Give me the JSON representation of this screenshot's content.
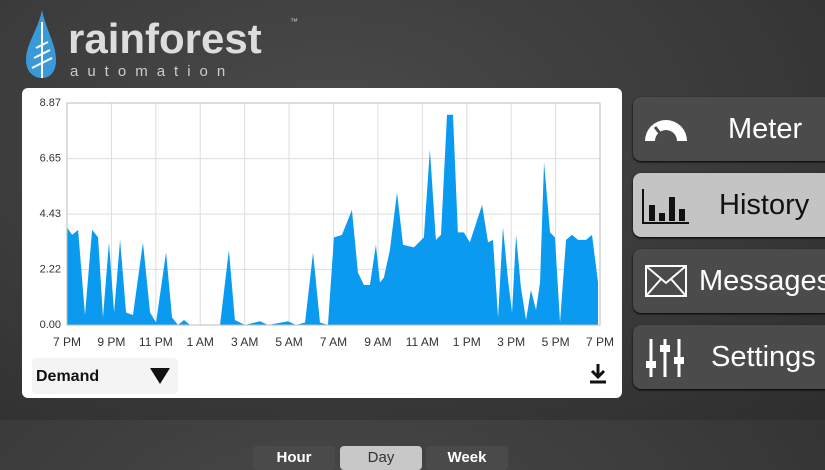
{
  "logo": {
    "name": "rainforest",
    "tm": "™",
    "tagline": "automation"
  },
  "chart_data": {
    "type": "area",
    "color": "#0a9bf0",
    "grid": true,
    "x": [
      0,
      0.23,
      0.5,
      0.81,
      1.13,
      1.4,
      1.62,
      1.89,
      2.12,
      2.39,
      2.66,
      2.97,
      3.42,
      3.74,
      4.01,
      4.46,
      4.73,
      5,
      5.27,
      5.54,
      6.89,
      7.29,
      7.56,
      8.01,
      8.69,
      9.05,
      9.95,
      10.31,
      10.72,
      11.08,
      11.39,
      11.75,
      12.02,
      12.38,
      12.56,
      12.83,
      13.1,
      13.37,
      13.64,
      13.91,
      14.09,
      14.27,
      14.54,
      14.86,
      15.13,
      15.62,
      16.07,
      16.34,
      16.61,
      16.84,
      17.11,
      17.38,
      17.6,
      17.87,
      18.14,
      18.69,
      18.96,
      19.18,
      19.41,
      19.63,
      19.86,
      20.04,
      20.22,
      20.44,
      20.67,
      20.89,
      21.12,
      21.3,
      21.48,
      21.75,
      21.97,
      22.2,
      22.47,
      22.74,
      23.01,
      23.37,
      23.64,
      23.91
    ],
    "values": [
      3.9,
      3.6,
      3.8,
      0.4,
      3.8,
      3.5,
      0.3,
      3.3,
      0.5,
      3.4,
      0.5,
      0.4,
      3.3,
      0.5,
      0.1,
      2.9,
      0.3,
      0,
      0.2,
      0,
      0,
      3,
      0.2,
      0,
      0.15,
      0,
      0.15,
      0,
      0.1,
      2.9,
      0.1,
      0,
      3.5,
      3.6,
      4,
      4.6,
      2.1,
      1.6,
      1.6,
      3.2,
      1.7,
      1.9,
      3,
      5.3,
      3.2,
      3.1,
      3.5,
      7,
      3.4,
      3.6,
      8.4,
      8.4,
      3.7,
      3.7,
      3.3,
      4.8,
      3.3,
      3.4,
      0.3,
      3.9,
      1.8,
      0.5,
      3.6,
      1.5,
      0.2,
      1.4,
      0.6,
      1.7,
      6.5,
      3.7,
      3.5,
      0.1,
      3.4,
      3.6,
      3.4,
      3.4,
      3.6,
      1.7
    ],
    "xlim": [
      0,
      24
    ],
    "xticks": [
      {
        "value": 0,
        "label": "7 PM"
      },
      {
        "value": 2,
        "label": "9 PM"
      },
      {
        "value": 4,
        "label": "11 PM"
      },
      {
        "value": 6,
        "label": "1 AM"
      },
      {
        "value": 8,
        "label": "3 AM"
      },
      {
        "value": 10,
        "label": "5 AM"
      },
      {
        "value": 12,
        "label": "7 AM"
      },
      {
        "value": 14,
        "label": "9 AM"
      },
      {
        "value": 16,
        "label": "11 AM"
      },
      {
        "value": 18,
        "label": "1 PM"
      },
      {
        "value": 20,
        "label": "3 PM"
      },
      {
        "value": 22,
        "label": "5 PM"
      },
      {
        "value": 24,
        "label": "7 PM"
      }
    ],
    "ylim": [
      0,
      8.87
    ],
    "yticks": [
      {
        "value": 0,
        "label": "0.00"
      },
      2.22,
      4.43,
      6.65,
      8.87
    ]
  },
  "controls": {
    "select": "Demand",
    "ranges": [
      "Hour",
      "Day",
      "Week"
    ]
  },
  "nav": [
    "Meter",
    "History",
    "Messages",
    "Settings"
  ]
}
